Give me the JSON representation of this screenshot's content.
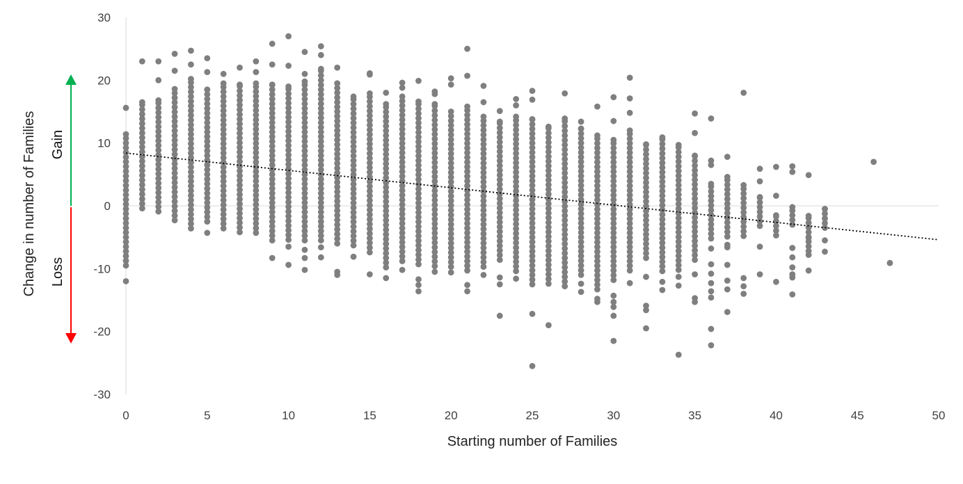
{
  "chart_data": {
    "type": "scatter",
    "xlabel": "Starting number of Families",
    "ylabel": "Change in number of Families",
    "xlim": [
      0,
      50
    ],
    "ylim": [
      -30,
      30
    ],
    "x_ticks": [
      "0",
      "5",
      "10",
      "15",
      "20",
      "25",
      "30",
      "35",
      "40",
      "45",
      "50"
    ],
    "y_ticks": [
      "30",
      "20",
      "10",
      "0",
      "-10",
      "-20",
      "-30"
    ],
    "grid": false,
    "zero_line": true,
    "marker_color": "#7f7f7f",
    "trendline": {
      "style": "dotted",
      "color": "#000000",
      "x": [
        0,
        50
      ],
      "y": [
        8.4,
        -5.4
      ]
    },
    "gain_label": "Gain",
    "loss_label": "Loss",
    "gain_color": "#00b050",
    "loss_color": "#ff0000",
    "columns": [
      {
        "x": 0,
        "y_min": -9.5,
        "y_max": 11.4,
        "outliers": [
          15.6,
          -12
        ]
      },
      {
        "x": 1,
        "y_min": -0.4,
        "y_max": 16.5,
        "outliers": [
          23
        ]
      },
      {
        "x": 2,
        "y_min": -0.9,
        "y_max": 16.8,
        "outliers": [
          20,
          23
        ]
      },
      {
        "x": 3,
        "y_min": -2.3,
        "y_max": 18.6,
        "outliers": [
          21.5,
          24.2
        ]
      },
      {
        "x": 4,
        "y_min": -3.6,
        "y_max": 20.2,
        "outliers": [
          22.5,
          24.7
        ]
      },
      {
        "x": 5,
        "y_min": -2.5,
        "y_max": 18.5,
        "outliers": [
          21.3,
          23.5,
          -4.3
        ]
      },
      {
        "x": 6,
        "y_min": -3.6,
        "y_max": 19.5,
        "outliers": [
          21
        ]
      },
      {
        "x": 7,
        "y_min": -4.2,
        "y_max": 19.3,
        "outliers": [
          22
        ]
      },
      {
        "x": 8,
        "y_min": -4.3,
        "y_max": 19.5,
        "outliers": [
          21.3,
          23
        ]
      },
      {
        "x": 9,
        "y_min": -5.5,
        "y_max": 19.3,
        "outliers": [
          22.5,
          25.8,
          -8.3
        ]
      },
      {
        "x": 10,
        "y_min": -5.4,
        "y_max": 19,
        "outliers": [
          22.3,
          27,
          -6.5,
          -9.4
        ]
      },
      {
        "x": 11,
        "y_min": -5.5,
        "y_max": 19.8,
        "outliers": [
          21,
          24.5,
          -7,
          -8.3,
          -10.2
        ]
      },
      {
        "x": 12,
        "y_min": -5.5,
        "y_max": 21.8,
        "outliers": [
          24,
          25.4,
          -6.6,
          -8.2
        ]
      },
      {
        "x": 13,
        "y_min": -6,
        "y_max": 19.5,
        "outliers": [
          22,
          -10.5,
          -11
        ]
      },
      {
        "x": 14,
        "y_min": -6.3,
        "y_max": 17.4,
        "outliers": [
          -8.1
        ]
      },
      {
        "x": 15,
        "y_min": -7.4,
        "y_max": 17.9,
        "outliers": [
          20.9,
          21.1,
          -10.9
        ]
      },
      {
        "x": 16,
        "y_min": -9.8,
        "y_max": 16.2,
        "outliers": [
          18,
          -11.5
        ]
      },
      {
        "x": 17,
        "y_min": -8.8,
        "y_max": 17.4,
        "outliers": [
          18.8,
          19.6,
          -10.2
        ]
      },
      {
        "x": 18,
        "y_min": -9.3,
        "y_max": 16.6,
        "outliers": [
          19.9,
          -11.7,
          -12.6,
          -13.6
        ]
      },
      {
        "x": 19,
        "y_min": -9.6,
        "y_max": 16.2,
        "outliers": [
          17.8,
          18.2,
          -10.5
        ]
      },
      {
        "x": 20,
        "y_min": -9.7,
        "y_max": 15,
        "outliers": [
          19.3,
          20.3,
          -10.6
        ]
      },
      {
        "x": 21,
        "y_min": -10.3,
        "y_max": 15.8,
        "outliers": [
          20.7,
          25,
          -12.6,
          -13.6
        ]
      },
      {
        "x": 22,
        "y_min": -9.7,
        "y_max": 14.2,
        "outliers": [
          16.5,
          19.1,
          -11
        ]
      },
      {
        "x": 23,
        "y_min": -8.6,
        "y_max": 13.4,
        "outliers": [
          15.1,
          -11.4,
          -12.5,
          -17.5
        ]
      },
      {
        "x": 24,
        "y_min": -10.4,
        "y_max": 14.2,
        "outliers": [
          16,
          17,
          -11.6
        ]
      },
      {
        "x": 25,
        "y_min": -12.5,
        "y_max": 13.8,
        "outliers": [
          16.9,
          18.3,
          -17.2,
          -25.5
        ]
      },
      {
        "x": 26,
        "y_min": -12.4,
        "y_max": 12.6,
        "outliers": [
          -19
        ]
      },
      {
        "x": 27,
        "y_min": -12.8,
        "y_max": 13.9,
        "outliers": [
          17.9
        ]
      },
      {
        "x": 28,
        "y_min": -11,
        "y_max": 12.3,
        "outliers": [
          13.4,
          -12.4,
          -13.7
        ]
      },
      {
        "x": 29,
        "y_min": -13.3,
        "y_max": 11.2,
        "outliers": [
          15.8,
          -14.8,
          -15.3
        ]
      },
      {
        "x": 30,
        "y_min": -11.8,
        "y_max": 10.5,
        "outliers": [
          13.5,
          17.3,
          -14.3,
          -15.3,
          -16.1,
          -17.5,
          -21.5
        ]
      },
      {
        "x": 31,
        "y_min": -10.3,
        "y_max": 12,
        "outliers": [
          14.8,
          17.1,
          20.4,
          -12.3
        ]
      },
      {
        "x": 32,
        "y_min": -8.3,
        "y_max": 9.8,
        "outliers": [
          -11.3,
          -15.9,
          -16.6,
          -19.5
        ]
      },
      {
        "x": 33,
        "y_min": -10.4,
        "y_max": 10.9,
        "outliers": [
          -12.1,
          -13.4
        ]
      },
      {
        "x": 34,
        "y_min": -10.2,
        "y_max": 9.7,
        "outliers": [
          -11.3,
          -12.7,
          -23.7
        ]
      },
      {
        "x": 35,
        "y_min": -8.6,
        "y_max": 8,
        "outliers": [
          11.6,
          14.7,
          -10.9,
          -14.7,
          -15.3
        ]
      },
      {
        "x": 36,
        "y_min": -5.2,
        "y_max": 3.5,
        "outliers": [
          6.5,
          7.2,
          13.9,
          -6.8,
          -9.3,
          -10.8,
          -12.3,
          -13.6,
          -14.6,
          -19.6,
          -22.2
        ]
      },
      {
        "x": 37,
        "y_min": -4.9,
        "y_max": 4.6,
        "outliers": [
          7.8,
          -6.2,
          -6.6,
          -9.4,
          -11.9,
          -13.3,
          -16.9
        ]
      },
      {
        "x": 38,
        "y_min": -4.8,
        "y_max": 3.3,
        "outliers": [
          18,
          -11.5,
          -12.8,
          -14
        ]
      },
      {
        "x": 39,
        "y_min": -3.2,
        "y_max": 1.4,
        "outliers": [
          3.9,
          5.9,
          -6.5,
          -10.9
        ]
      },
      {
        "x": 40,
        "y_min": -4.7,
        "y_max": -1.5,
        "outliers": [
          1.6,
          6.2,
          -12.1
        ]
      },
      {
        "x": 41,
        "y_min": -3,
        "y_max": -0.2,
        "outliers": [
          5.4,
          6.3,
          -6.7,
          -8.2,
          -9.8,
          -10.9,
          -11.4,
          -14.1
        ]
      },
      {
        "x": 42,
        "y_min": -7.2,
        "y_max": -1.6,
        "outliers": [
          4.9,
          -5.1,
          -7.8,
          -10.3
        ]
      },
      {
        "x": 43,
        "y_min": -3.5,
        "y_max": -0.5,
        "outliers": [
          -5.5,
          -7.3
        ]
      },
      {
        "x": 46,
        "y_min": 7,
        "y_max": 7,
        "outliers": []
      },
      {
        "x": 47,
        "y_min": -9.1,
        "y_max": -9.1,
        "outliers": []
      }
    ]
  }
}
